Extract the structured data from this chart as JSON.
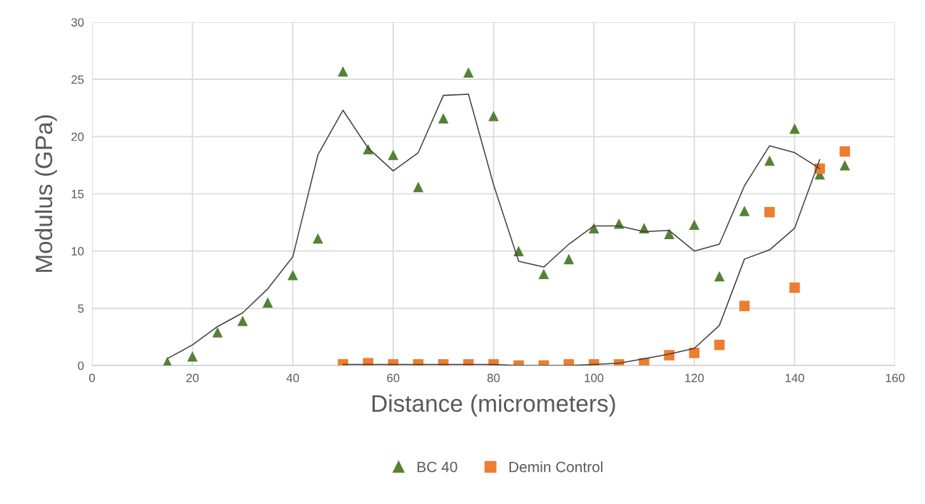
{
  "chart_data": {
    "type": "scatter",
    "xlabel": "Distance (micrometers)",
    "ylabel": "Modulus (GPa)",
    "xlim": [
      0,
      160
    ],
    "xticks": [
      0,
      20,
      40,
      60,
      80,
      100,
      120,
      140,
      160
    ],
    "ylim": [
      0,
      30
    ],
    "yticks": [
      0,
      5,
      10,
      15,
      20,
      25,
      30
    ],
    "grid": true,
    "legend": "bottom",
    "series": [
      {
        "name": "BC 40",
        "marker": "triangle",
        "color": "#548235",
        "x": [
          15,
          20,
          25,
          30,
          35,
          40,
          45,
          50,
          55,
          60,
          65,
          70,
          75,
          80,
          85,
          90,
          95,
          100,
          105,
          110,
          115,
          120,
          125,
          130,
          135,
          140,
          145,
          150
        ],
        "values": [
          0.3,
          0.8,
          2.9,
          3.9,
          5.5,
          7.9,
          11.1,
          25.7,
          18.9,
          18.4,
          15.6,
          21.6,
          25.6,
          21.8,
          10.0,
          8.0,
          9.3,
          12.0,
          12.4,
          12.0,
          11.5,
          12.3,
          7.8,
          13.5,
          17.9,
          20.7,
          16.7,
          17.5
        ]
      },
      {
        "name": "Demin Control",
        "marker": "square",
        "color": "#ed7d31",
        "x": [
          50,
          55,
          60,
          65,
          70,
          75,
          80,
          85,
          90,
          95,
          100,
          105,
          110,
          115,
          120,
          125,
          130,
          135,
          140,
          145,
          150
        ],
        "values": [
          0.1,
          0.2,
          0.1,
          0.1,
          0.1,
          0.1,
          0.1,
          0.0,
          0.0,
          0.1,
          0.1,
          0.1,
          0.2,
          0.9,
          1.1,
          1.8,
          5.2,
          13.4,
          6.8,
          17.2,
          18.7
        ]
      },
      {
        "type": "line",
        "marker": "none",
        "color": "#404040",
        "x": [
          15,
          20,
          25,
          30,
          35,
          40,
          45,
          50,
          55,
          60,
          65,
          70,
          75,
          80,
          85,
          90,
          95,
          100,
          105,
          110,
          115,
          120,
          125,
          130,
          135,
          140,
          145
        ],
        "values": [
          0.6,
          1.8,
          3.4,
          4.6,
          6.7,
          9.5,
          18.4,
          22.3,
          19.0,
          17.0,
          18.6,
          23.6,
          23.7,
          15.8,
          9.1,
          8.6,
          10.6,
          12.2,
          12.2,
          11.7,
          11.8,
          10.0,
          10.6,
          15.7,
          19.2,
          18.6,
          17.2
        ]
      },
      {
        "type": "line",
        "marker": "none",
        "color": "#404040",
        "x": [
          50,
          55,
          60,
          65,
          70,
          75,
          80,
          85,
          90,
          95,
          100,
          105,
          110,
          115,
          120,
          125,
          130,
          135,
          140,
          145
        ],
        "values": [
          0.1,
          0.1,
          0.1,
          0.1,
          0.1,
          0.1,
          0.1,
          0.0,
          0.0,
          0.0,
          0.1,
          0.2,
          0.6,
          1.0,
          1.5,
          3.5,
          9.3,
          10.1,
          12.0,
          18.0
        ]
      }
    ]
  }
}
